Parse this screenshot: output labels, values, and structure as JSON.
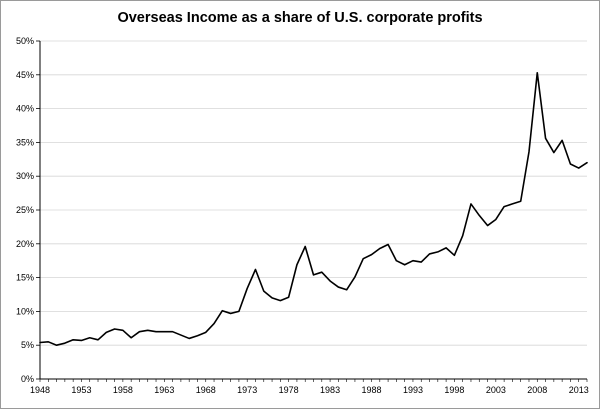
{
  "chart_data": {
    "type": "line",
    "title": "Overseas Income as a share of U.S. corporate profits",
    "xlabel": "",
    "ylabel": "",
    "xlim": [
      1948,
      2014
    ],
    "ylim": [
      0,
      50
    ],
    "y_ticks": [
      "0%",
      "5%",
      "10%",
      "15%",
      "20%",
      "25%",
      "30%",
      "35%",
      "40%",
      "45%",
      "50%"
    ],
    "x_ticks": [
      "1948",
      "1953",
      "1958",
      "1963",
      "1968",
      "1973",
      "1978",
      "1983",
      "1988",
      "1993",
      "1998",
      "2003",
      "2008",
      "2013"
    ],
    "grid": "horizontal",
    "legend": "none",
    "line_color": "#000000",
    "series": [
      {
        "x": [
          1948,
          1949,
          1950,
          1951,
          1952,
          1953,
          1954,
          1955,
          1956,
          1957,
          1958,
          1959,
          1960,
          1961,
          1962,
          1963,
          1964,
          1965,
          1966,
          1967,
          1968,
          1969,
          1970,
          1971,
          1972,
          1973,
          1974,
          1975,
          1976,
          1977,
          1978,
          1979,
          1980,
          1981,
          1982,
          1983,
          1984,
          1985,
          1986,
          1987,
          1988,
          1989,
          1990,
          1991,
          1992,
          1993,
          1994,
          1995,
          1996,
          1997,
          1998,
          1999,
          2000,
          2001,
          2002,
          2003,
          2004,
          2005,
          2006,
          2007,
          2008,
          2009,
          2010,
          2011,
          2012,
          2013,
          2014
        ],
        "values": [
          5.4,
          5.5,
          5.0,
          5.3,
          5.8,
          5.7,
          6.1,
          5.8,
          6.9,
          7.4,
          7.2,
          6.1,
          7.0,
          7.2,
          7.0,
          7.0,
          7.0,
          6.5,
          6.0,
          6.4,
          6.9,
          8.2,
          10.1,
          9.7,
          10.0,
          13.4,
          16.2,
          13.0,
          12.0,
          11.6,
          12.1,
          16.9,
          19.6,
          15.4,
          15.8,
          14.5,
          13.6,
          13.2,
          15.1,
          17.8,
          18.4,
          19.3,
          19.9,
          17.5,
          16.9,
          17.5,
          17.3,
          18.5,
          18.8,
          19.4,
          18.3,
          21.2,
          25.9,
          24.2,
          22.7,
          23.6,
          25.5,
          25.9,
          26.3,
          33.6,
          45.3,
          35.6,
          33.5,
          35.3,
          31.8,
          31.2,
          32.0
        ]
      }
    ]
  }
}
